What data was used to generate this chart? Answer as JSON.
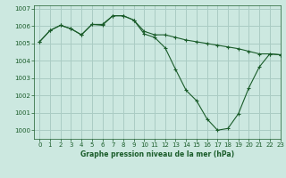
{
  "background_color": "#cce8e0",
  "grid_color": "#aaccc4",
  "line_color": "#1a5c2a",
  "title": "Graphe pression niveau de la mer (hPa)",
  "xlim": [
    -0.5,
    23
  ],
  "ylim": [
    999.5,
    1007.2
  ],
  "yticks": [
    1000,
    1001,
    1002,
    1003,
    1004,
    1005,
    1006,
    1007
  ],
  "xticks": [
    0,
    1,
    2,
    3,
    4,
    5,
    6,
    7,
    8,
    9,
    10,
    11,
    12,
    13,
    14,
    15,
    16,
    17,
    18,
    19,
    20,
    21,
    22,
    23
  ],
  "series": [
    [
      1005.1,
      1005.75,
      1006.05,
      1005.85,
      1005.5,
      1006.1,
      1006.05,
      1006.6,
      1006.6,
      1006.35,
      1005.7,
      1005.5,
      1005.5,
      1005.35,
      1005.2,
      1005.1,
      1005.0,
      1004.9,
      1004.8,
      1004.7,
      1004.55,
      1004.4,
      1004.4,
      1004.35
    ],
    [
      1005.1,
      1005.75,
      1006.05,
      1005.85,
      1005.5,
      1006.1,
      1006.1,
      1006.6,
      1006.6,
      1006.35,
      1005.55,
      1005.35,
      1004.75,
      1003.5,
      1002.3,
      1001.7,
      1000.65,
      1000.0,
      1000.1,
      1000.95,
      1002.45,
      1003.65,
      1004.4,
      1004.35
    ]
  ]
}
